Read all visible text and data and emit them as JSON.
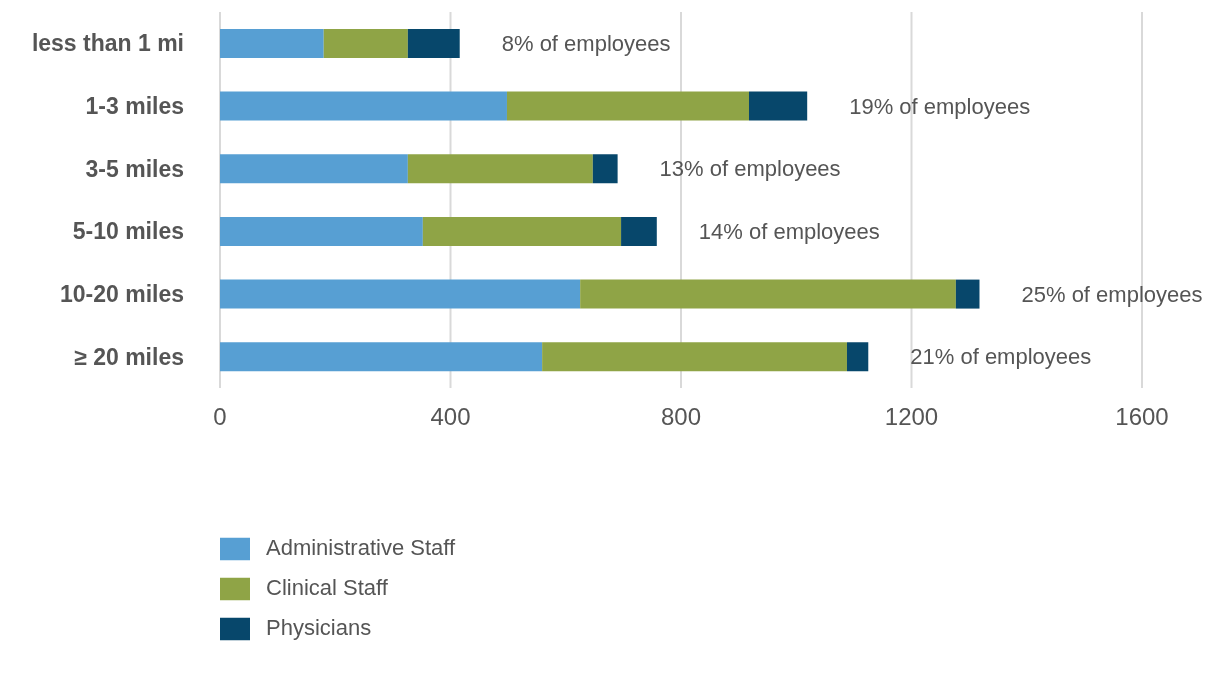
{
  "chart_data": {
    "type": "bar",
    "orientation": "horizontal",
    "stacked": true,
    "categories": [
      "less than 1 mi",
      "1-3 miles",
      "3-5 miles",
      "5-10 miles",
      "10-20 miles",
      "≥ 20 miles"
    ],
    "series": [
      {
        "name": "Administrative Staff",
        "color": "#579fd3",
        "values": [
          180,
          498,
          326,
          352,
          625,
          559
        ]
      },
      {
        "name": "Clinical Staff",
        "color": "#8fa446",
        "values": [
          146,
          420,
          321,
          344,
          652,
          529
        ]
      },
      {
        "name": "Physicians",
        "color": "#07476b",
        "values": [
          90,
          101,
          43,
          62,
          41,
          37
        ]
      }
    ],
    "xlim": [
      0,
      1600
    ],
    "xticks": [
      0,
      400,
      800,
      1200,
      1600
    ],
    "grid": "x",
    "legend": "bottom left",
    "annotations": [
      {
        "text": "8% of employees",
        "x": 416,
        "y": "less than 1 mi"
      },
      {
        "text": "19% of employees",
        "x": 1019,
        "y": "1-3 miles"
      },
      {
        "text": "13% of employees",
        "x": 690,
        "y": "3-5 miles"
      },
      {
        "text": "14% of employees",
        "x": 758,
        "y": "5-10 miles"
      },
      {
        "text": "25% of employees",
        "x": 1318,
        "y": "10-20 miles"
      },
      {
        "text": "21% of employees",
        "x": 1125,
        "y": "≥ 20 miles"
      }
    ]
  }
}
